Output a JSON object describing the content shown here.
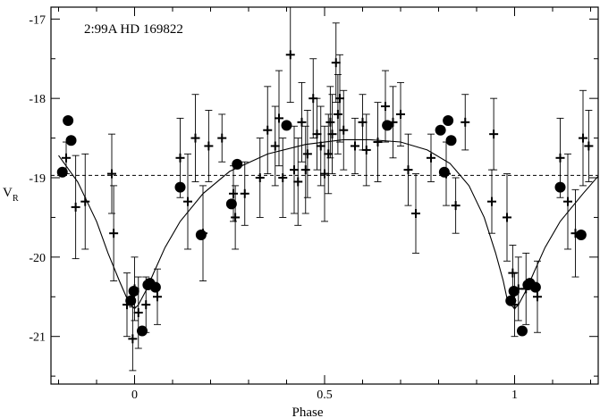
{
  "chart_data": {
    "type": "scatter",
    "annotation": "2:99A   HD 169822",
    "xlabel": "Phase",
    "ylabel_main": "V",
    "ylabel_sub": "R",
    "xlim": [
      -0.22,
      1.22
    ],
    "ylim": [
      -16.85,
      -21.6
    ],
    "y_inverted": true,
    "x_ticks": [
      0,
      0.5,
      1
    ],
    "x_tick_labels": [
      "0",
      "0.5",
      "1"
    ],
    "y_ticks": [
      -17,
      -18,
      -19,
      -20,
      -21
    ],
    "y_tick_labels": [
      "-17",
      "-18",
      "-19",
      "-20",
      "-21"
    ],
    "mean_level": -18.97,
    "model_curve": {
      "x": [
        -0.2,
        -0.15,
        -0.1,
        -0.07,
        -0.04,
        -0.02,
        -0.01,
        0.0,
        0.01,
        0.03,
        0.05,
        0.08,
        0.12,
        0.18,
        0.25,
        0.35,
        0.45,
        0.55,
        0.62,
        0.7,
        0.77,
        0.83,
        0.88,
        0.92,
        0.95,
        0.97,
        0.98,
        0.99,
        1.0,
        1.01,
        1.03,
        1.05,
        1.08,
        1.12,
        1.18,
        1.22
      ],
      "y": [
        -18.72,
        -19.05,
        -19.55,
        -19.95,
        -20.3,
        -20.52,
        -20.6,
        -20.65,
        -20.6,
        -20.42,
        -20.2,
        -19.88,
        -19.55,
        -19.2,
        -18.92,
        -18.7,
        -18.58,
        -18.52,
        -18.52,
        -18.55,
        -18.65,
        -18.82,
        -19.1,
        -19.5,
        -19.95,
        -20.3,
        -20.52,
        -20.6,
        -20.65,
        -20.6,
        -20.42,
        -20.2,
        -19.88,
        -19.55,
        -19.2,
        -18.98
      ]
    },
    "series": [
      {
        "name": "",
        "marker": "circle",
        "x": [
          -0.19,
          -0.175,
          -0.167,
          -0.01,
          -0.002,
          0.02,
          0.035,
          0.04,
          0.055,
          0.12,
          0.175,
          0.255,
          0.27,
          0.4,
          0.665,
          0.805,
          0.815,
          0.825,
          0.833,
          0.99,
          0.998,
          1.02,
          1.035,
          1.04,
          1.055,
          1.12,
          1.175
        ],
        "y": [
          -18.93,
          -18.28,
          -18.53,
          -20.55,
          -20.43,
          -20.93,
          -20.35,
          -20.33,
          -20.38,
          -19.12,
          -19.72,
          -19.33,
          -18.83,
          -18.34,
          -18.34,
          -18.4,
          -18.93,
          -18.28,
          -18.53,
          -20.55,
          -20.43,
          -20.93,
          -20.35,
          -20.33,
          -20.38,
          -19.12,
          -19.72
        ]
      },
      {
        "name": "",
        "marker": "plus",
        "x": [
          -0.18,
          -0.155,
          -0.13,
          -0.06,
          -0.055,
          -0.02,
          -0.005,
          0.0,
          0.01,
          0.03,
          0.06,
          0.12,
          0.14,
          0.16,
          0.18,
          0.195,
          0.23,
          0.26,
          0.265,
          0.29,
          0.33,
          0.35,
          0.37,
          0.38,
          0.39,
          0.41,
          0.42,
          0.43,
          0.44,
          0.45,
          0.455,
          0.47,
          0.48,
          0.49,
          0.5,
          0.51,
          0.515,
          0.52,
          0.53,
          0.535,
          0.54,
          0.55,
          0.58,
          0.6,
          0.61,
          0.64,
          0.66,
          0.68,
          0.7,
          0.72,
          0.74,
          0.78,
          0.82,
          0.845,
          0.87,
          0.94,
          0.945,
          0.98,
          0.995,
          1.0,
          1.01,
          1.03,
          1.06,
          1.12,
          1.14,
          1.16,
          1.18,
          1.195
        ],
        "y": [
          -18.75,
          -19.37,
          -19.3,
          -18.95,
          -19.7,
          -20.6,
          -21.03,
          -20.4,
          -20.7,
          -20.6,
          -20.5,
          -18.75,
          -19.3,
          -18.5,
          -19.7,
          -18.6,
          -18.5,
          -19.2,
          -19.5,
          -19.2,
          -19.0,
          -18.4,
          -18.6,
          -18.25,
          -19.0,
          -17.45,
          -18.9,
          -19.05,
          -18.3,
          -18.9,
          -18.7,
          -18.0,
          -18.45,
          -18.6,
          -18.95,
          -18.7,
          -18.3,
          -18.45,
          -17.55,
          -18.2,
          -18.0,
          -18.4,
          -18.6,
          -18.3,
          -18.65,
          -18.55,
          -18.1,
          -18.3,
          -18.2,
          -18.9,
          -19.45,
          -18.75,
          -18.95,
          -19.35,
          -18.3,
          -19.3,
          -18.45,
          -19.5,
          -20.2,
          -20.6,
          -20.4,
          -20.4,
          -20.5,
          -18.75,
          -19.3,
          -19.7,
          -18.5,
          -18.6
        ],
        "err": [
          0.2,
          0.65,
          0.6,
          0.5,
          0.6,
          0.4,
          0.4,
          0.4,
          0.45,
          0.35,
          0.35,
          0.5,
          0.6,
          0.55,
          0.6,
          0.45,
          0.3,
          0.35,
          0.4,
          0.4,
          0.5,
          0.55,
          0.5,
          0.6,
          0.5,
          0.6,
          0.55,
          0.55,
          0.5,
          0.55,
          0.55,
          0.5,
          0.45,
          0.5,
          0.6,
          0.5,
          0.45,
          0.5,
          0.5,
          0.5,
          0.55,
          0.5,
          0.35,
          0.35,
          0.45,
          0.5,
          0.45,
          0.45,
          0.4,
          0.45,
          0.5,
          0.3,
          0.4,
          0.35,
          0.35,
          0.4,
          0.45,
          0.55,
          0.35,
          0.4,
          0.4,
          0.45,
          0.45,
          0.5,
          0.6,
          0.55,
          0.6,
          0.45
        ]
      }
    ]
  }
}
